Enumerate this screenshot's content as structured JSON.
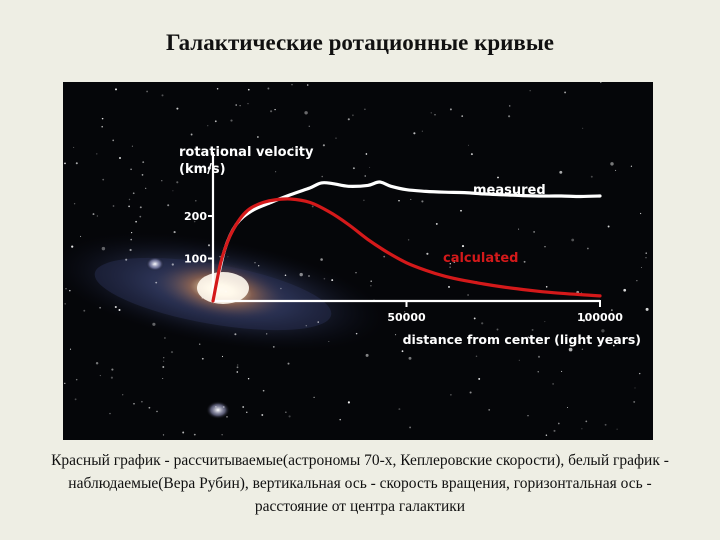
{
  "page": {
    "title": "Галактические ротационные кривые",
    "caption": "Красный график - рассчитываемые(астрономы 70-х, Кеплеровские скорости), белый график - наблюдаемые(Вера Рубин), вертикальная ось - скорость вращения, горизонтальная ось - расстояние от центра галактики"
  },
  "colors": {
    "measured": "#ffffff",
    "calculated": "#d4191a",
    "background": "#050609"
  },
  "chart_data": {
    "type": "line",
    "ylabel_line1": "rotational velocity",
    "ylabel_line2": "(km/s)",
    "xlabel": "distance from center (light years)",
    "xlim": [
      0,
      100000
    ],
    "ylim": [
      0,
      300
    ],
    "x_ticks": [
      {
        "value": 50000,
        "label": "50000"
      },
      {
        "value": 100000,
        "label": "100000"
      }
    ],
    "y_ticks": [
      {
        "value": 100,
        "label": "100"
      },
      {
        "value": 200,
        "label": "200"
      }
    ],
    "series": [
      {
        "name": "measured",
        "color": "#ffffff",
        "x": [
          0,
          3000,
          6000,
          10000,
          15000,
          20000,
          25000,
          28000,
          31000,
          35000,
          40000,
          43000,
          46000,
          50000,
          55000,
          60000,
          65000,
          70000,
          75000,
          80000,
          85000,
          90000,
          95000,
          100000
        ],
        "y": [
          0,
          120,
          180,
          212,
          232,
          250,
          266,
          278,
          276,
          270,
          272,
          280,
          270,
          262,
          258,
          256,
          255,
          252,
          250,
          248,
          247,
          247,
          246,
          247
        ]
      },
      {
        "name": "calculated",
        "color": "#d4191a",
        "x": [
          0,
          2000,
          4000,
          6000,
          8000,
          10000,
          13000,
          16000,
          20000,
          25000,
          30000,
          35000,
          40000,
          45000,
          50000,
          55000,
          60000,
          65000,
          70000,
          75000,
          80000,
          85000,
          90000,
          95000,
          100000
        ],
        "y": [
          0,
          90,
          145,
          180,
          205,
          220,
          232,
          238,
          240,
          232,
          210,
          180,
          145,
          115,
          90,
          72,
          58,
          48,
          40,
          33,
          27,
          22,
          18,
          15,
          12
        ]
      }
    ]
  }
}
